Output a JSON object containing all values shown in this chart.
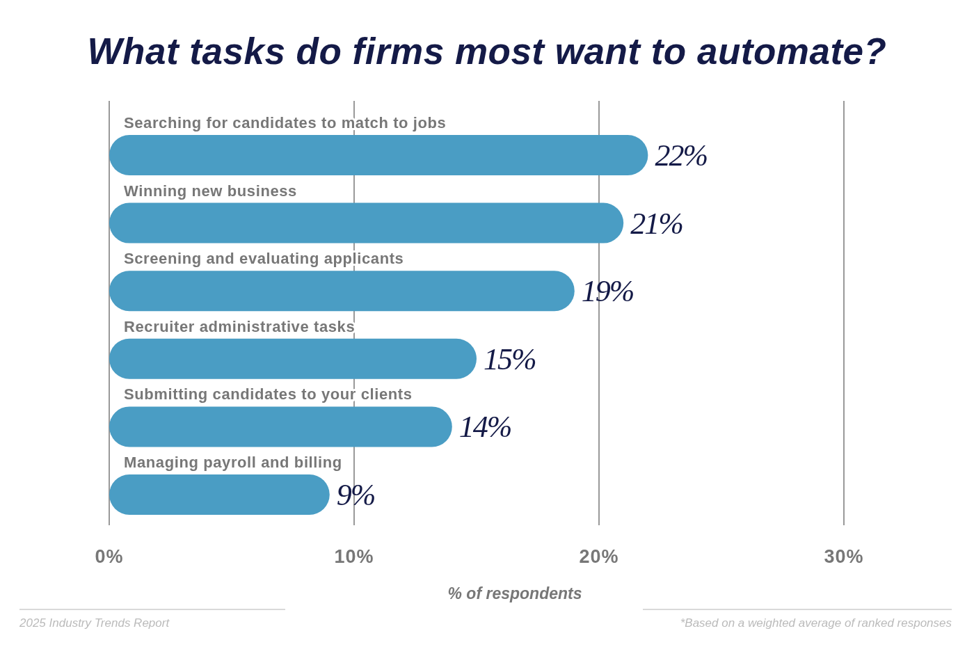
{
  "chart_data": {
    "type": "bar",
    "orientation": "horizontal",
    "title": "What tasks do firms most want to automate?",
    "xlabel": "% of respondents",
    "categories": [
      "Searching for candidates to match to jobs",
      "Winning new business",
      "Screening and evaluating applicants",
      "Recruiter administrative tasks",
      "Submitting candidates to your clients",
      "Managing payroll and billing"
    ],
    "values": [
      22,
      21,
      19,
      15,
      14,
      9
    ],
    "color": "#4a9dc4",
    "value_labels": [
      "22%",
      "21%",
      "19%",
      "15%",
      "14%",
      "9%"
    ],
    "xlim": [
      0,
      30
    ],
    "xticks": [
      {
        "value": 0,
        "label": "0%"
      },
      {
        "value": 10,
        "label": "10%"
      },
      {
        "value": 20,
        "label": "20%"
      },
      {
        "value": 30,
        "label": "30%"
      }
    ],
    "grid": "x",
    "annotations": [
      "2025 Industry Trends Report",
      "*Based on a weighted average of ranked responses"
    ]
  }
}
